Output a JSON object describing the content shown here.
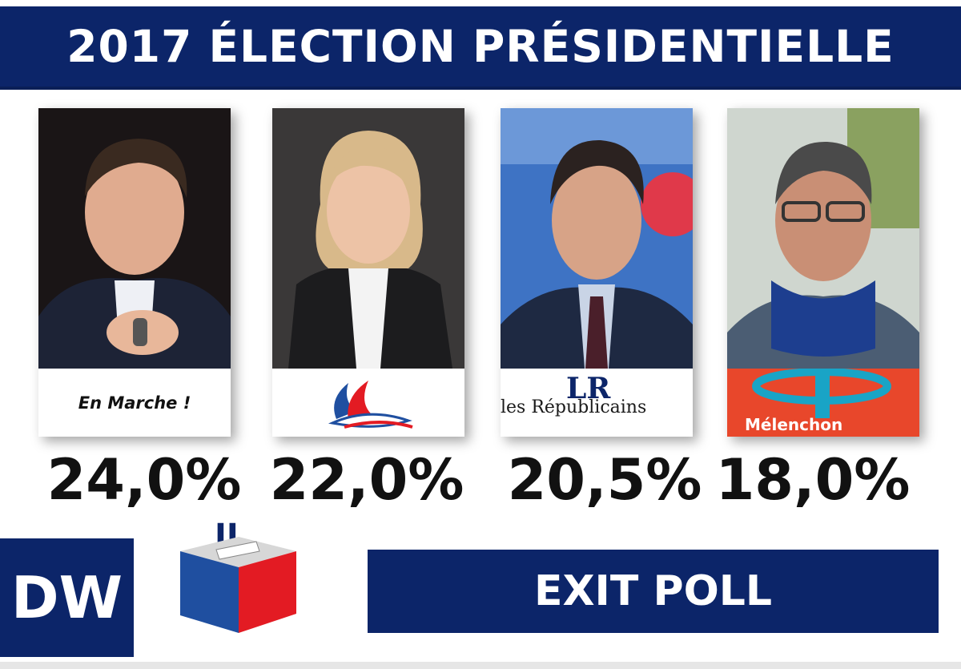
{
  "header": {
    "title": "2017 ÉLECTION PRÉSIDENTIELLE"
  },
  "candidates": [
    {
      "party_logo_text": "En Marche !",
      "percent": "24,0%"
    },
    {
      "party_logo_text": "",
      "percent": "22,0%"
    },
    {
      "party_logo_text": "les Républicains",
      "logo_initials": "LR",
      "percent": "20,5%"
    },
    {
      "party_logo_text": "Mélenchon",
      "percent": "18,0%"
    }
  ],
  "footer": {
    "brand": "DW",
    "ballot_letters": "JL",
    "label": "EXIT POLL"
  },
  "colors": {
    "navy": "#0c2569",
    "red": "#e31b23",
    "blue": "#1f4fa0",
    "white": "#ffffff"
  }
}
